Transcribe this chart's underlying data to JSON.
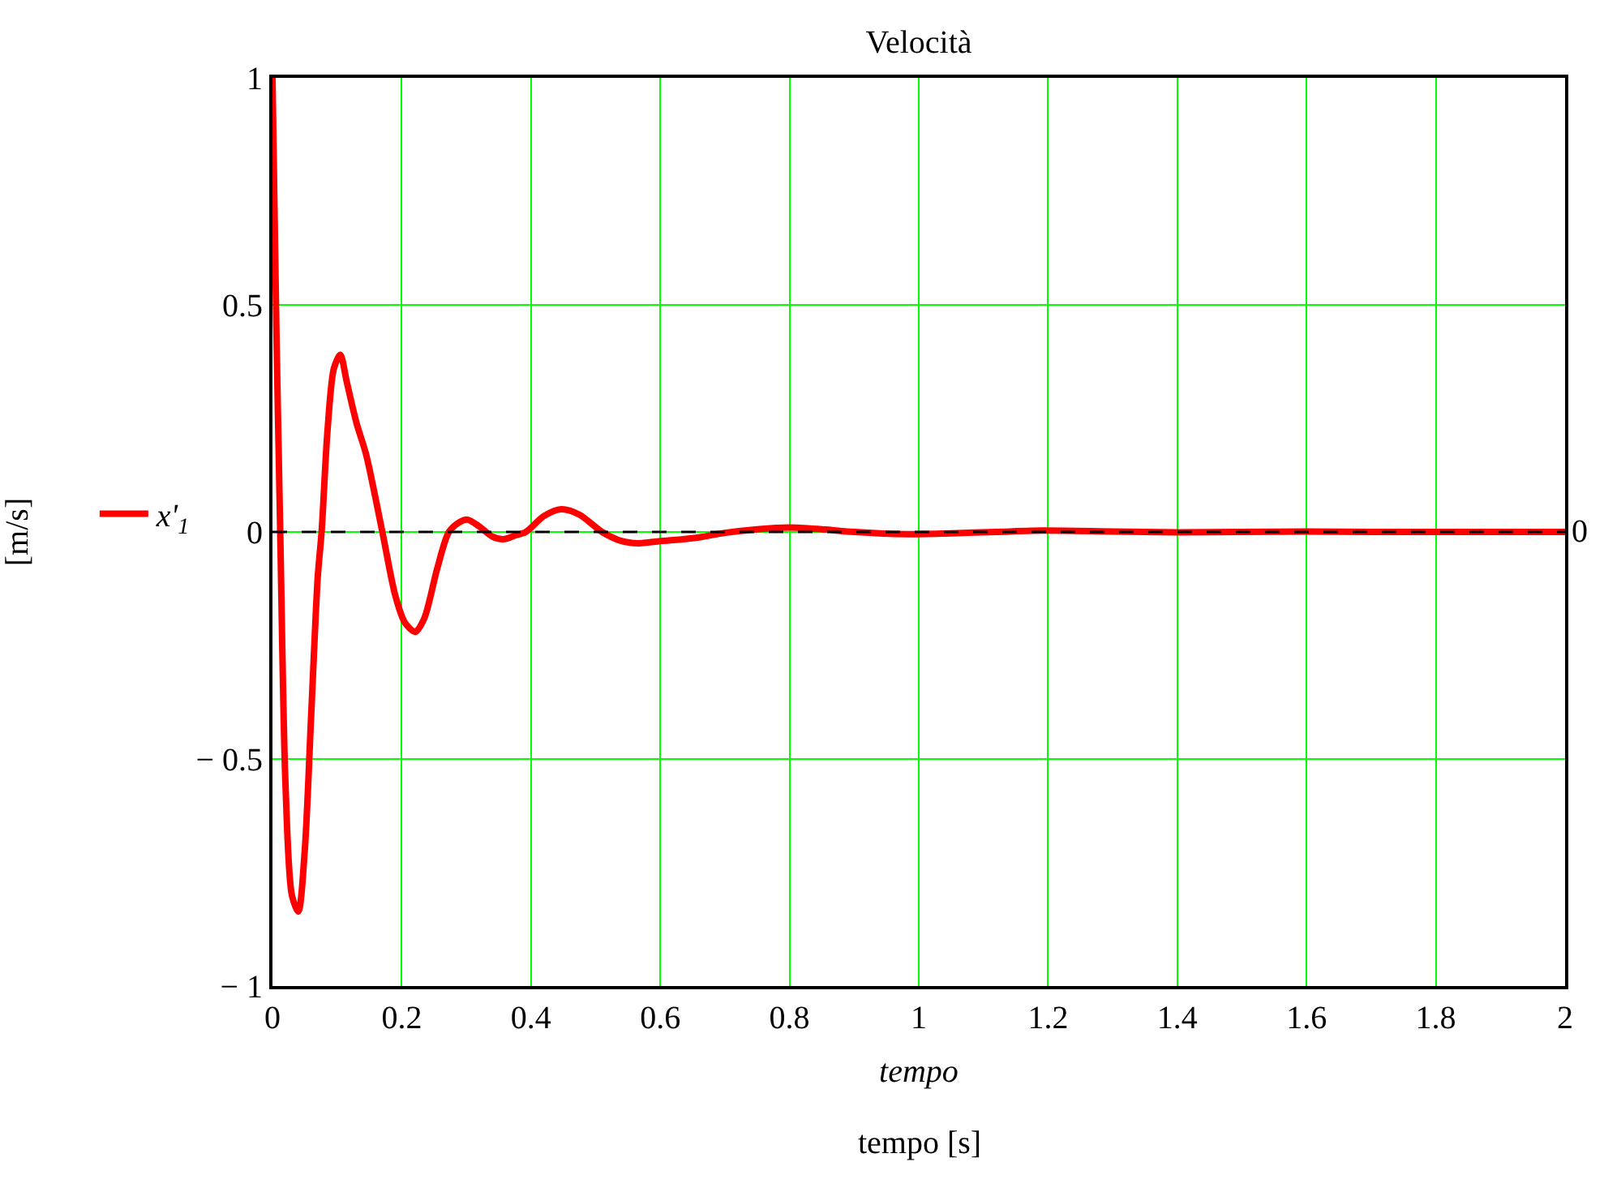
{
  "chart_data": {
    "type": "line",
    "title": "Velocità",
    "xlabel": "tempo",
    "ylabel": "[m/s]",
    "annotations": [
      "tempo [s]"
    ],
    "series": [
      {
        "name": "x'$_{1}$",
        "color": "#ff0000",
        "x": [
          0,
          0.006,
          0.012,
          0.02,
          0.03,
          0.04,
          0.05,
          0.06,
          0.07,
          0.076,
          0.085,
          0.095,
          0.105,
          0.115,
          0.13,
          0.145,
          0.17,
          0.19,
          0.205,
          0.221,
          0.235,
          0.255,
          0.273,
          0.29,
          0.302,
          0.32,
          0.34,
          0.357,
          0.375,
          0.392,
          0.42,
          0.447,
          0.475,
          0.51,
          0.54,
          0.565,
          0.6,
          0.62,
          0.66,
          0.7,
          0.75,
          0.8,
          0.85,
          0.9,
          0.98,
          1.05,
          1.12,
          1.19,
          1.3,
          1.4,
          1.5,
          1.6,
          1.7,
          1.8,
          1.9,
          2
        ],
        "values": [
          1,
          0.45,
          0,
          -0.55,
          -0.8,
          -0.836,
          -0.7,
          -0.4,
          -0.1,
          0,
          0.22,
          0.36,
          0.39,
          0.33,
          0.24,
          0.17,
          0,
          -0.14,
          -0.2,
          -0.22,
          -0.19,
          -0.08,
          0,
          0.022,
          0.027,
          0.012,
          -0.01,
          -0.016,
          -0.008,
          0,
          0.035,
          0.05,
          0.038,
          0,
          -0.02,
          -0.025,
          -0.02,
          -0.018,
          -0.012,
          -0.002,
          0.006,
          0.01,
          0.006,
          0,
          -0.005,
          -0.003,
          0,
          0.003,
          0.001,
          -0.001,
          0,
          0.001,
          0,
          0,
          0,
          0
        ]
      }
    ],
    "ref_lines": [
      {
        "axis": "y",
        "value": 0,
        "label": "0",
        "color": "#000000",
        "line_style": "dashed"
      }
    ],
    "xlim": [
      0,
      2
    ],
    "xticks": [
      0,
      0.2,
      0.4,
      0.6,
      0.8,
      1,
      1.2,
      1.4,
      1.6,
      1.8,
      2
    ],
    "ylim": [
      -1,
      1
    ],
    "yticks": [
      {
        "value": -1,
        "label": "− 1"
      },
      {
        "value": -0.5,
        "label": "− 0.5"
      },
      0,
      0.5,
      1
    ],
    "grid": true,
    "legend": "left",
    "line_style": "solid",
    "marker": "none"
  }
}
